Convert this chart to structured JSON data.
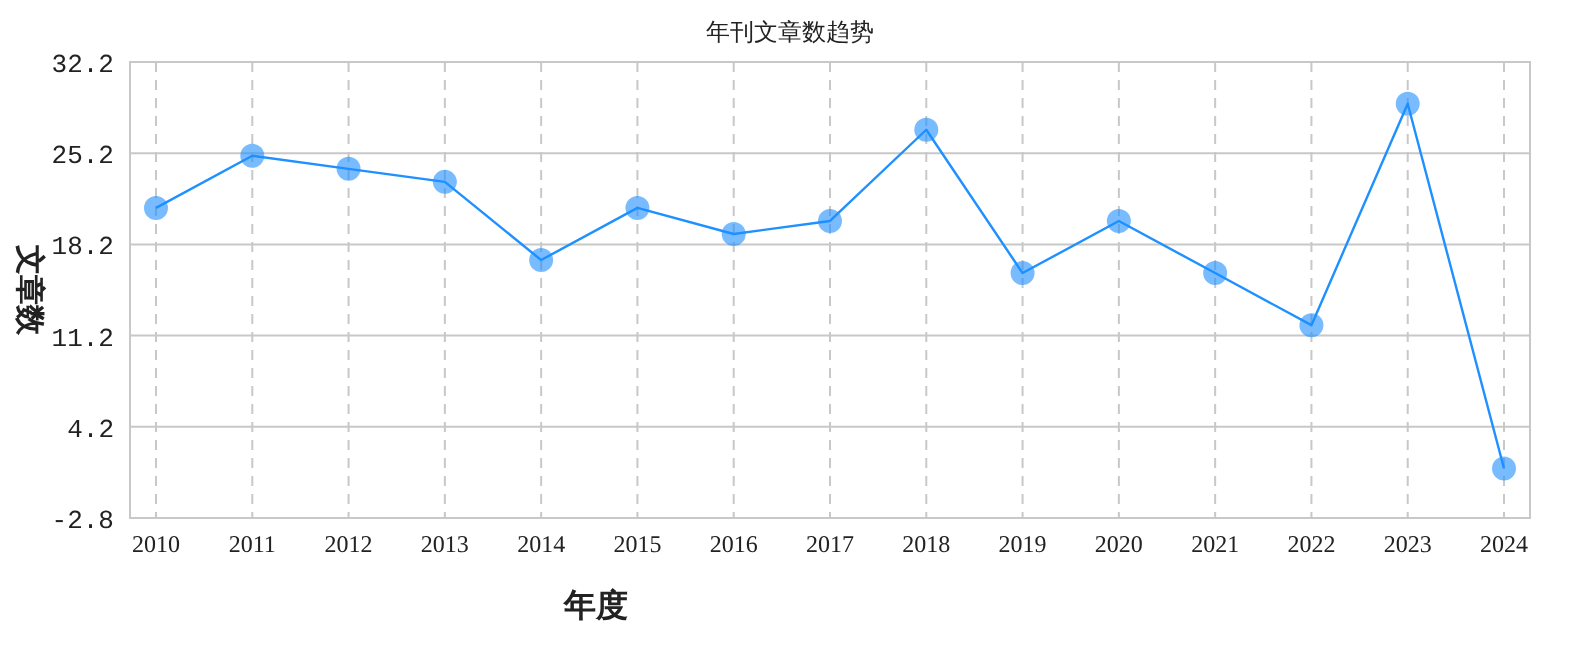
{
  "chart_data": {
    "type": "line",
    "title": "年刊文章数趋势",
    "xlabel": "年度",
    "ylabel": "文章数",
    "categories": [
      "2010",
      "2011",
      "2012",
      "2013",
      "2014",
      "2015",
      "2016",
      "2017",
      "2018",
      "2019",
      "2020",
      "2021",
      "2022",
      "2023",
      "2024"
    ],
    "series": [
      {
        "color": "#1e90ff",
        "values": [
          21,
          25,
          24,
          23,
          17,
          21,
          19,
          20,
          27,
          16,
          20,
          16,
          12,
          29,
          1
        ]
      }
    ],
    "ylim": [
      -2.8,
      32.2
    ],
    "yticks": [
      -2.8,
      4.2,
      11.2,
      18.2,
      25.2,
      32.2
    ],
    "grid": true,
    "marker": "circle",
    "line_style": "solid"
  }
}
